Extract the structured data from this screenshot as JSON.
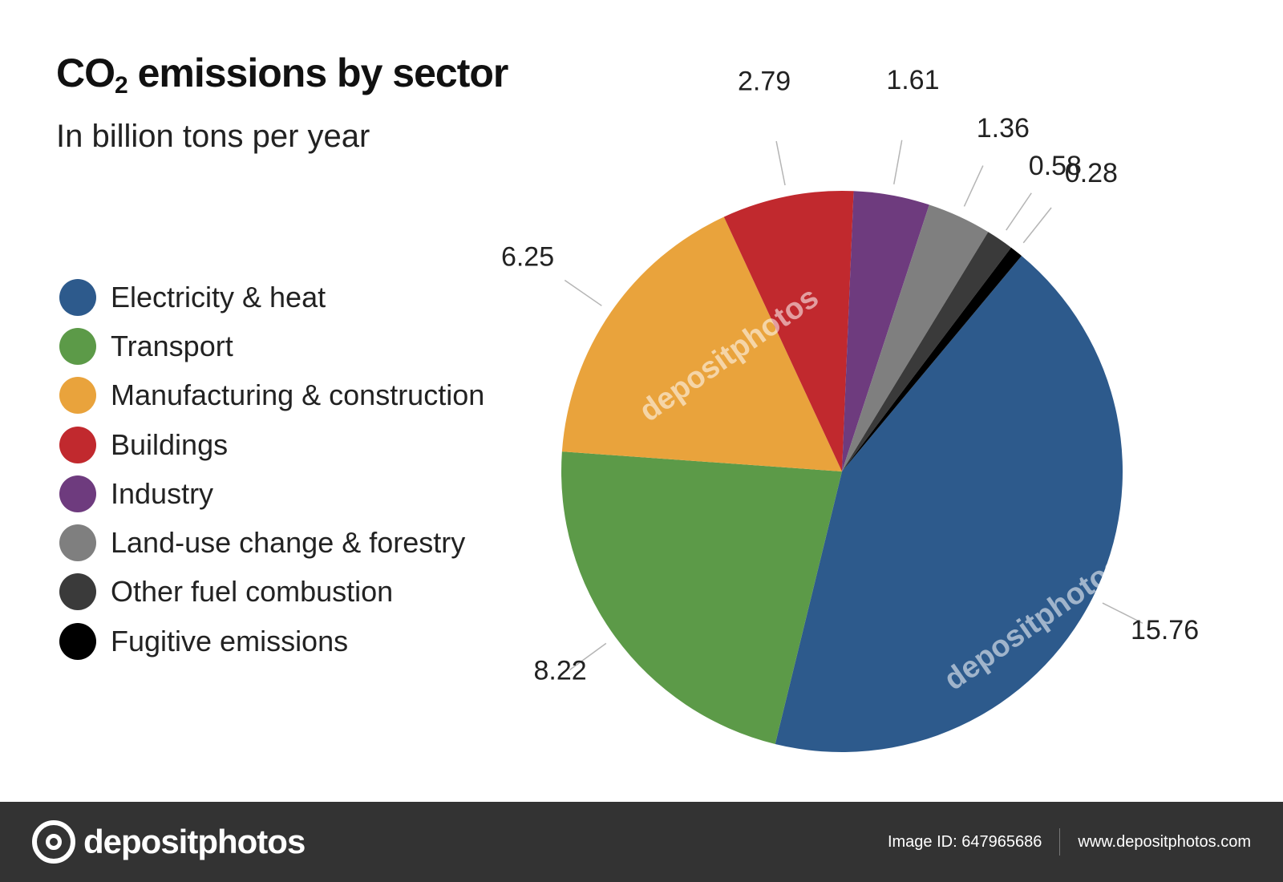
{
  "chart_data": {
    "type": "pie",
    "title_main": "CO",
    "title_sub": "2",
    "title_rest": " emissions by sector",
    "subtitle": "In billion tons per year",
    "legend_placement": "left",
    "slices": [
      {
        "name": "Electricity & heat",
        "value": 15.76,
        "label": "15.76",
        "color": "#2d5a8c"
      },
      {
        "name": "Transport",
        "value": 8.22,
        "label": "8.22",
        "color": "#5c9a48"
      },
      {
        "name": "Manufacturing & construction",
        "value": 6.25,
        "label": "6.25",
        "color": "#e9a33c"
      },
      {
        "name": "Buildings",
        "value": 2.79,
        "label": "2.79",
        "color": "#c1292e"
      },
      {
        "name": "Industry",
        "value": 1.61,
        "label": "1.61",
        "color": "#6e3b7e"
      },
      {
        "name": "Land-use change & forestry",
        "value": 1.36,
        "label": "1.36",
        "color": "#7f7f7f"
      },
      {
        "name": "Other fuel combustion",
        "value": 0.58,
        "label": "0.58",
        "color": "#3a3a3a"
      },
      {
        "name": "Fugitive emissions",
        "value": 0.28,
        "label": "0.28",
        "color": "#000000"
      }
    ]
  },
  "watermark_text": "depositphotos",
  "footer": {
    "brand": "depositphotos",
    "image_id": "Image ID: 647965686",
    "website": "www.depositphotos.com"
  }
}
